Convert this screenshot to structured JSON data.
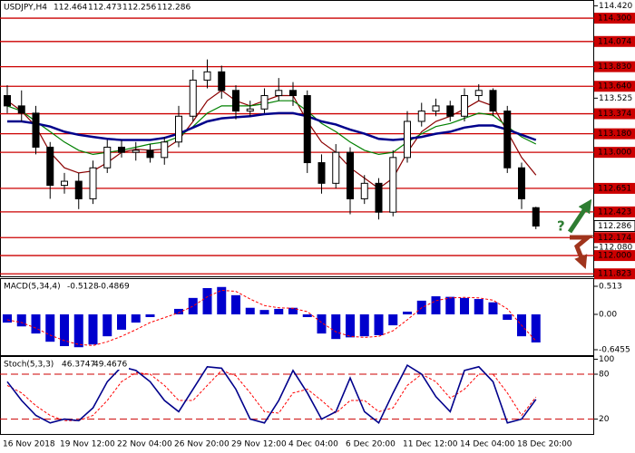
{
  "chart_data": [
    {
      "type": "candlestick",
      "symbol": "USDJPY,H4",
      "categories": [
        "16 Nov 2018",
        null,
        null,
        null,
        "19 Nov 12:00",
        null,
        null,
        null,
        "22 Nov 04:00",
        null,
        null,
        null,
        "26 Nov 20:00",
        null,
        null,
        null,
        "29 Nov 12:00",
        null,
        null,
        null,
        "4 Dec 04:00",
        null,
        null,
        null,
        "6 Dec 20:00",
        null,
        null,
        null,
        "11 Dec 12:00",
        null,
        null,
        null,
        "14 Dec 04:00",
        null,
        null,
        null,
        "18 Dec 20:00",
        null
      ],
      "open": [
        113.55,
        113.45,
        113.38,
        113.05,
        112.68,
        112.72,
        112.55,
        112.85,
        113.05,
        113.0,
        113.02,
        112.95,
        113.1,
        113.35,
        113.7,
        113.78,
        113.6,
        113.4,
        113.42,
        113.55,
        113.6,
        113.55,
        112.9,
        112.7,
        113.0,
        112.55,
        112.7,
        112.42,
        112.95,
        113.3,
        113.4,
        113.45,
        113.35,
        113.55,
        113.6,
        113.4,
        112.85,
        112.464
      ],
      "high": [
        113.65,
        113.6,
        113.45,
        113.1,
        112.8,
        112.8,
        112.92,
        113.12,
        113.12,
        113.1,
        113.08,
        113.15,
        113.45,
        113.8,
        113.9,
        113.84,
        113.65,
        113.5,
        113.62,
        113.72,
        113.68,
        113.6,
        112.98,
        113.08,
        113.05,
        112.78,
        112.75,
        113.02,
        113.4,
        113.48,
        113.52,
        113.5,
        113.62,
        113.66,
        113.62,
        113.45,
        112.9,
        112.473
      ],
      "low": [
        113.38,
        113.3,
        112.98,
        112.55,
        112.6,
        112.45,
        112.5,
        112.8,
        112.95,
        112.92,
        112.9,
        112.88,
        113.05,
        113.3,
        113.62,
        113.52,
        113.32,
        113.35,
        113.38,
        113.5,
        113.45,
        112.8,
        112.6,
        112.65,
        112.4,
        112.5,
        112.35,
        112.38,
        112.9,
        113.25,
        113.35,
        113.3,
        113.3,
        113.5,
        113.35,
        112.8,
        112.45,
        112.256
      ],
      "close": [
        113.45,
        113.38,
        113.05,
        112.68,
        112.72,
        112.55,
        112.85,
        113.05,
        113.0,
        113.02,
        112.95,
        113.1,
        113.35,
        113.7,
        113.78,
        113.6,
        113.4,
        113.42,
        113.55,
        113.6,
        113.55,
        112.9,
        112.7,
        113.0,
        112.55,
        112.7,
        112.42,
        112.95,
        113.3,
        113.4,
        113.45,
        113.35,
        113.55,
        113.6,
        113.4,
        112.85,
        112.55,
        112.286
      ],
      "moving_averages": [
        {
          "color": "#8b0000",
          "values": [
            113.5,
            113.4,
            113.25,
            113.0,
            112.85,
            112.8,
            112.82,
            112.9,
            113.0,
            113.03,
            113.02,
            113.03,
            113.12,
            113.3,
            113.5,
            113.6,
            113.5,
            113.45,
            113.5,
            113.55,
            113.55,
            113.3,
            113.1,
            113.0,
            112.85,
            112.75,
            112.65,
            112.75,
            113.0,
            113.2,
            113.3,
            113.35,
            113.42,
            113.5,
            113.45,
            113.2,
            112.95,
            112.78
          ]
        },
        {
          "color": "#008000",
          "values": [
            113.45,
            113.4,
            113.3,
            113.2,
            113.1,
            113.02,
            112.98,
            113.0,
            113.02,
            113.05,
            113.08,
            113.1,
            113.15,
            113.25,
            113.38,
            113.45,
            113.45,
            113.45,
            113.47,
            113.5,
            113.5,
            113.4,
            113.28,
            113.2,
            113.1,
            113.02,
            112.98,
            113.0,
            113.1,
            113.18,
            113.25,
            113.28,
            113.33,
            113.38,
            113.36,
            113.25,
            113.15,
            113.08
          ]
        },
        {
          "color": "#00008b",
          "values": [
            113.3,
            113.3,
            113.28,
            113.25,
            113.2,
            113.17,
            113.15,
            113.13,
            113.12,
            113.12,
            113.12,
            113.14,
            113.18,
            113.24,
            113.3,
            113.33,
            113.34,
            113.35,
            113.37,
            113.38,
            113.38,
            113.35,
            113.3,
            113.27,
            113.22,
            113.18,
            113.13,
            113.12,
            113.13,
            113.15,
            113.18,
            113.2,
            113.24,
            113.26,
            113.26,
            113.22,
            113.17,
            113.12
          ]
        }
      ],
      "ylim": [
        111.79,
        114.476
      ],
      "yticks": [
        {
          "value": 114.42,
          "label": "114.420"
        },
        {
          "value": 113.525,
          "label": "113.525"
        },
        {
          "value": 112.08,
          "label": "112.080"
        }
      ],
      "levels": [
        {
          "value": 114.3,
          "label": "114.300"
        },
        {
          "value": 114.074,
          "label": "114.074"
        },
        {
          "value": 113.83,
          "label": "113.830"
        },
        {
          "value": 113.64,
          "label": "113.640"
        },
        {
          "value": 113.374,
          "label": "113.374"
        },
        {
          "value": 113.18,
          "label": "113.180"
        },
        {
          "value": 113.0,
          "label": "113.000"
        },
        {
          "value": 112.651,
          "label": "112.651"
        },
        {
          "value": 112.423,
          "label": "112.423"
        },
        {
          "value": 112.174,
          "label": "112.174"
        },
        {
          "value": 112.0,
          "label": "112.000"
        },
        {
          "value": 111.823,
          "label": "111.823"
        }
      ],
      "level_color": "#cc0000",
      "annotation": "?"
    },
    {
      "type": "macd",
      "name": "MACD(5,34,4)",
      "histogram": [
        -0.15,
        -0.22,
        -0.35,
        -0.5,
        -0.58,
        -0.6,
        -0.55,
        -0.4,
        -0.28,
        -0.15,
        -0.05,
        0.0,
        0.1,
        0.3,
        0.48,
        0.5,
        0.35,
        0.12,
        0.08,
        0.1,
        0.12,
        -0.05,
        -0.35,
        -0.45,
        -0.42,
        -0.4,
        -0.38,
        -0.2,
        0.05,
        0.25,
        0.33,
        0.32,
        0.3,
        0.28,
        0.22,
        -0.1,
        -0.4,
        -0.5128
      ],
      "signal": [
        -0.1,
        -0.15,
        -0.25,
        -0.38,
        -0.48,
        -0.55,
        -0.57,
        -0.5,
        -0.4,
        -0.28,
        -0.15,
        -0.06,
        0.03,
        0.15,
        0.32,
        0.44,
        0.42,
        0.28,
        0.16,
        0.12,
        0.11,
        0.05,
        -0.15,
        -0.32,
        -0.4,
        -0.42,
        -0.4,
        -0.3,
        -0.1,
        0.12,
        0.25,
        0.3,
        0.31,
        0.3,
        0.26,
        0.1,
        -0.2,
        -0.4869
      ],
      "color": "#0000cd",
      "signal_color": "#ff0000",
      "ylim": [
        -0.745,
        0.645
      ],
      "yticks": [
        0.513,
        {
          "value": 0,
          "label": "0.00"
        },
        -0.6455
      ]
    },
    {
      "type": "stochastic",
      "name": "Stoch(5,3,3)",
      "k": [
        70,
        45,
        25,
        15,
        20,
        18,
        35,
        70,
        90,
        85,
        70,
        45,
        30,
        60,
        90,
        88,
        60,
        20,
        15,
        45,
        85,
        55,
        20,
        30,
        75,
        30,
        15,
        55,
        92,
        80,
        50,
        30,
        85,
        90,
        70,
        15,
        20,
        46.3747
      ],
      "d": [
        65,
        55,
        38,
        25,
        18,
        18,
        25,
        45,
        70,
        82,
        80,
        65,
        45,
        45,
        65,
        85,
        78,
        55,
        30,
        28,
        55,
        60,
        45,
        28,
        45,
        45,
        30,
        35,
        65,
        80,
        70,
        48,
        60,
        80,
        80,
        55,
        25,
        49.4676
      ],
      "k_color": "#00008b",
      "d_color": "#ff0000",
      "ylim": [
        -1,
        103
      ],
      "yticks": [
        100,
        80,
        20
      ],
      "levels": [
        80,
        20
      ]
    }
  ]
}
